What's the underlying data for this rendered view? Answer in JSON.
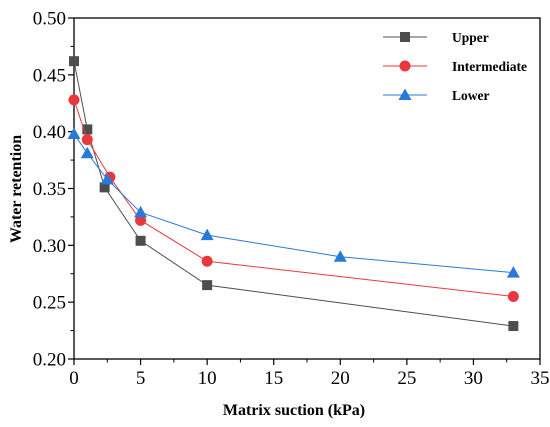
{
  "chart_data": {
    "type": "line",
    "xlabel": "Matrix suction (kPa)",
    "ylabel": "Water retention",
    "xlim": [
      0,
      35
    ],
    "ylim": [
      0.2,
      0.5
    ],
    "xticks": [
      "0",
      "5",
      "10",
      "15",
      "20",
      "25",
      "30",
      "35"
    ],
    "yticks": [
      "0.20",
      "0.25",
      "0.30",
      "0.35",
      "0.40",
      "0.45",
      "0.50"
    ],
    "legend_position": "top-right",
    "grid": false,
    "series": [
      {
        "name": "Upper",
        "color": "#4d4d4d",
        "marker": "square",
        "x": [
          0,
          1,
          2.3,
          5,
          10,
          33
        ],
        "y": [
          0.462,
          0.402,
          0.351,
          0.304,
          0.265,
          0.229
        ]
      },
      {
        "name": "Intermediate",
        "color": "#e8383d",
        "marker": "circle",
        "x": [
          0,
          1,
          2.7,
          5,
          10,
          33
        ],
        "y": [
          0.428,
          0.393,
          0.36,
          0.322,
          0.286,
          0.255
        ]
      },
      {
        "name": "Lower",
        "color": "#2979d8",
        "marker": "triangle",
        "x": [
          0,
          1,
          2.5,
          5,
          10,
          20,
          33
        ],
        "y": [
          0.398,
          0.381,
          0.358,
          0.329,
          0.309,
          0.29,
          0.276
        ]
      }
    ]
  }
}
